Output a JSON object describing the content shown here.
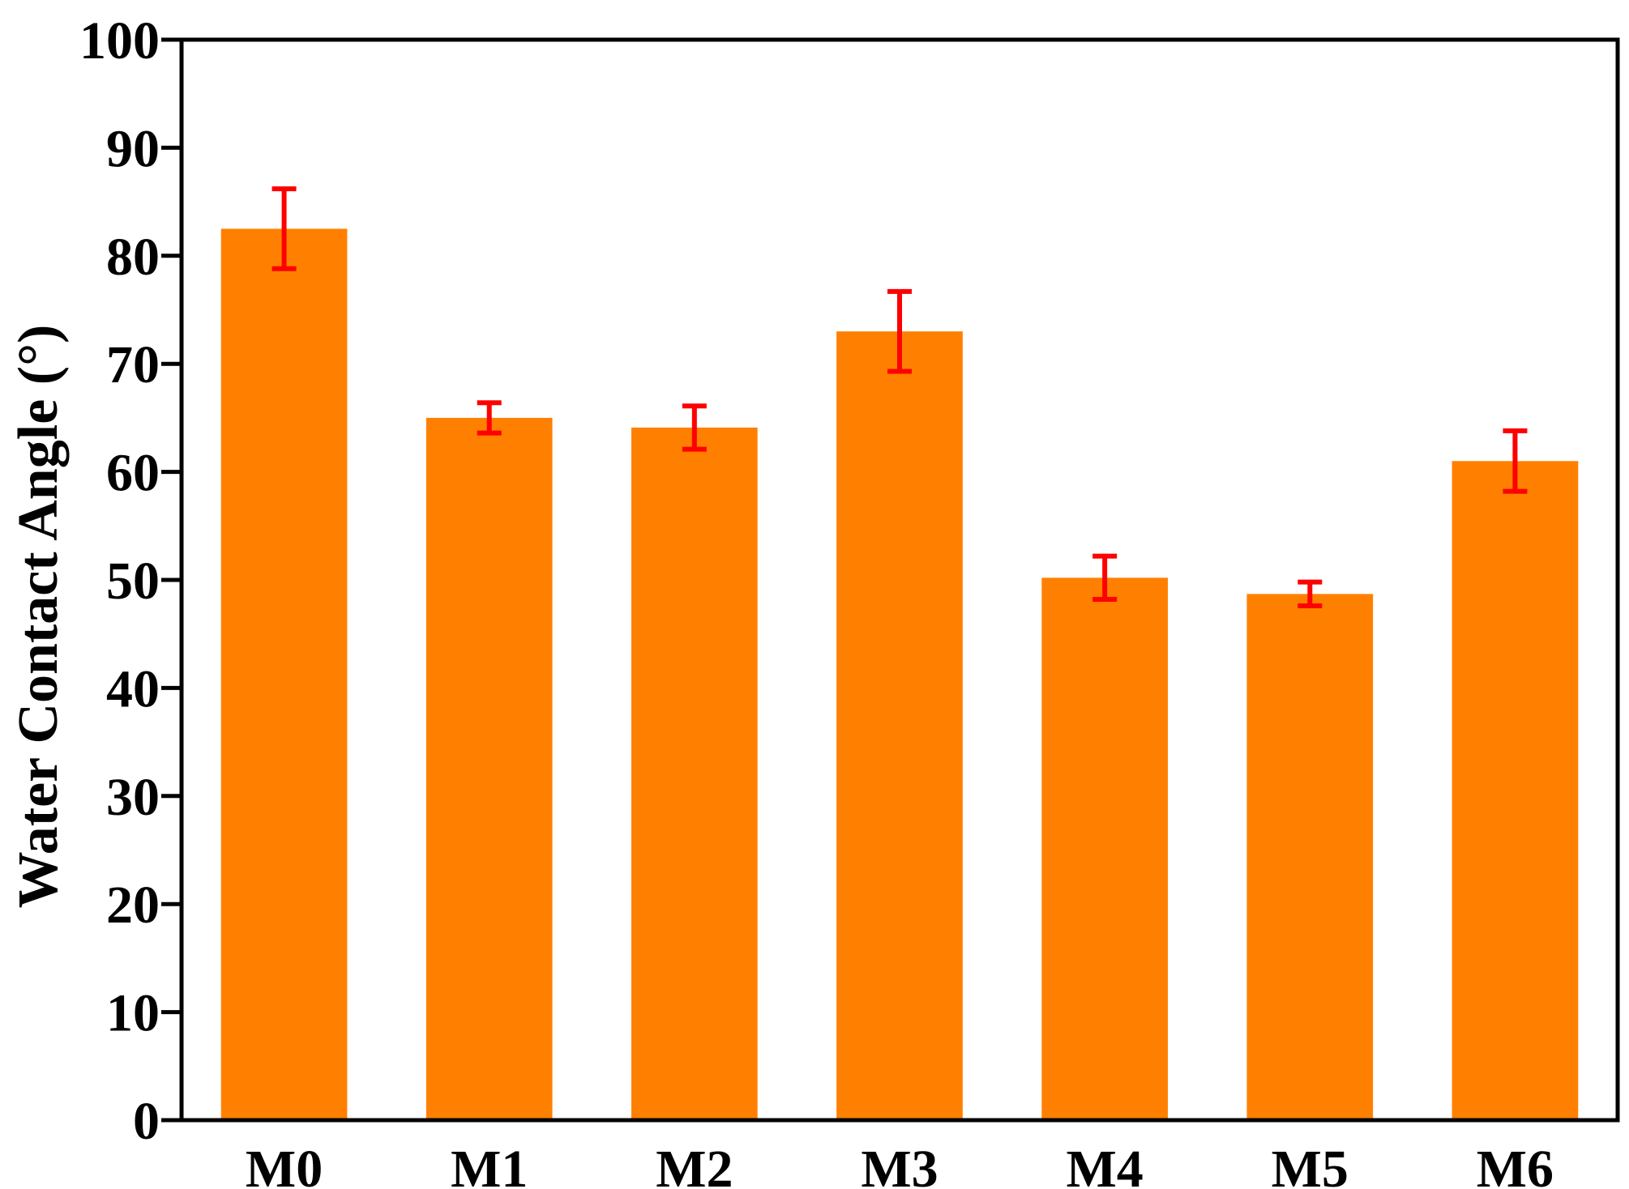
{
  "chart_data": {
    "type": "bar",
    "title": "",
    "xlabel": "",
    "ylabel": "Water Contact Angle (°)",
    "categories": [
      "M0",
      "M1",
      "M2",
      "M3",
      "M4",
      "M5",
      "M6"
    ],
    "values": [
      82.5,
      65.0,
      64.1,
      73.0,
      50.2,
      48.7,
      61.0
    ],
    "errors": [
      3.7,
      1.4,
      2.0,
      3.7,
      2.0,
      1.1,
      2.8
    ],
    "ylim": [
      0,
      100
    ],
    "yticks": [
      0,
      10,
      20,
      30,
      40,
      50,
      60,
      70,
      80,
      90,
      100
    ],
    "grid": false,
    "colors": {
      "bar": "#FF8000",
      "error_bar": "#FF0000",
      "axis": "#000000"
    }
  }
}
